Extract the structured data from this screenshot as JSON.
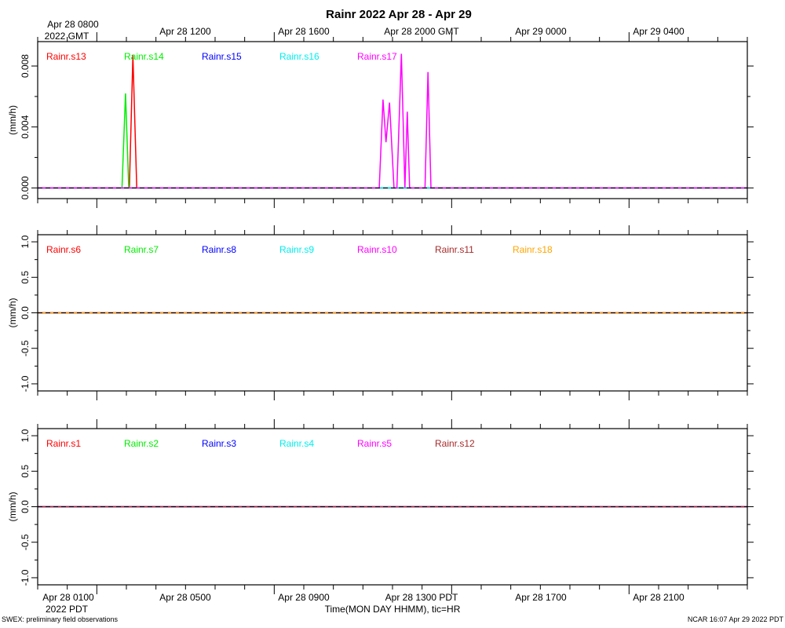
{
  "title": "Rainr 2022 Apr 28 - Apr 29",
  "top_axis": {
    "tick_labels": [
      "Apr 28 0800",
      "Apr 28 1200",
      "Apr 28 1600",
      "Apr 28 2000 GMT",
      "Apr 29 0000",
      "Apr 29 0400"
    ],
    "sub_label": "2022 GMT"
  },
  "bottom_axis": {
    "tick_labels": [
      "Apr 28 0100",
      "Apr 28 0500",
      "Apr 28 0900",
      "Apr 28 1300 PDT",
      "Apr 28 1700",
      "Apr 28 2100"
    ],
    "sub_label": "2022 PDT",
    "xlabel": "Time(MON DAY HHMM), tic=HR"
  },
  "footer": {
    "left": "SWEX: preliminary field observations",
    "right": "NCAR 16:07 Apr 29 2022 PDT"
  },
  "colors": {
    "red": "#ff0000",
    "green": "#00ee00",
    "blue": "#0000ff",
    "cyan": "#00eeee",
    "magenta": "#ff00ff",
    "brown": "#a52a2a",
    "orange": "#ffa500"
  },
  "chart_data": [
    {
      "type": "line",
      "ylabel": "(mm/h)",
      "xlim": [
        0,
        24
      ],
      "ylim": [
        -0.0007,
        0.0096
      ],
      "yticks": [
        0.0,
        0.004,
        0.008
      ],
      "ytick_labels": [
        "0.000",
        "0.004",
        "0.008"
      ],
      "series": [
        {
          "name": "Rainr.s13",
          "color": "#ff0000",
          "x": [
            0,
            3.1,
            3.22,
            3.35,
            24
          ],
          "y": [
            0,
            0,
            0.0087,
            0,
            0
          ]
        },
        {
          "name": "Rainr.s14",
          "color": "#00ee00",
          "x": [
            0,
            2.85,
            2.97,
            3.08,
            24
          ],
          "y": [
            0,
            0,
            0.0062,
            0,
            0
          ]
        },
        {
          "name": "Rainr.s15",
          "color": "#0000ff",
          "x": [
            0,
            24
          ],
          "y": [
            0,
            0
          ]
        },
        {
          "name": "Rainr.s16",
          "color": "#00eeee",
          "x": [
            0,
            24
          ],
          "y": [
            0,
            0
          ]
        },
        {
          "name": "Rainr.s17",
          "color": "#ff00ff",
          "x": [
            0,
            11.55,
            11.68,
            11.78,
            11.9,
            12.05,
            12.15,
            12.3,
            12.42,
            12.5,
            12.58,
            13.1,
            13.2,
            13.3,
            24
          ],
          "y": [
            0,
            0,
            0.0058,
            0.003,
            0.0056,
            0,
            0,
            0.0088,
            0,
            0.005,
            0,
            0,
            0.0076,
            0,
            0
          ]
        }
      ]
    },
    {
      "type": "line",
      "ylabel": "(mm/h)",
      "xlim": [
        0,
        24
      ],
      "ylim": [
        -1.1,
        1.1
      ],
      "yticks": [
        -1.0,
        -0.5,
        0.0,
        0.5,
        1.0
      ],
      "ytick_labels": [
        "-1.0",
        "-0.5",
        "0.0",
        "0.5",
        "1.0"
      ],
      "series": [
        {
          "name": "Rainr.s6",
          "color": "#ff0000",
          "x": [
            0,
            24
          ],
          "y": [
            0,
            0
          ]
        },
        {
          "name": "Rainr.s7",
          "color": "#00ee00",
          "x": [
            0,
            24
          ],
          "y": [
            0,
            0
          ]
        },
        {
          "name": "Rainr.s8",
          "color": "#0000ff",
          "x": [
            0,
            24
          ],
          "y": [
            0,
            0
          ]
        },
        {
          "name": "Rainr.s9",
          "color": "#00eeee",
          "x": [
            0,
            24
          ],
          "y": [
            0,
            0
          ]
        },
        {
          "name": "Rainr.s10",
          "color": "#ff00ff",
          "x": [
            0,
            24
          ],
          "y": [
            0,
            0
          ]
        },
        {
          "name": "Rainr.s11",
          "color": "#a52a2a",
          "x": [
            0,
            24
          ],
          "y": [
            0,
            0
          ]
        },
        {
          "name": "Rainr.s18",
          "color": "#ffa500",
          "x": [
            0,
            24
          ],
          "y": [
            0,
            0
          ]
        }
      ]
    },
    {
      "type": "line",
      "ylabel": "(mm/h)",
      "xlim": [
        0,
        24
      ],
      "ylim": [
        -1.1,
        1.1
      ],
      "yticks": [
        -1.0,
        -0.5,
        0.0,
        0.5,
        1.0
      ],
      "ytick_labels": [
        "-1.0",
        "-0.5",
        "0.0",
        "0.5",
        "1.0"
      ],
      "series": [
        {
          "name": "Rainr.s1",
          "color": "#ff0000",
          "x": [
            0,
            24
          ],
          "y": [
            0,
            0
          ]
        },
        {
          "name": "Rainr.s2",
          "color": "#00ee00",
          "x": [
            0,
            24
          ],
          "y": [
            0,
            0
          ]
        },
        {
          "name": "Rainr.s3",
          "color": "#0000ff",
          "x": [
            0,
            24
          ],
          "y": [
            0,
            0
          ]
        },
        {
          "name": "Rainr.s4",
          "color": "#00eeee",
          "x": [
            0,
            24
          ],
          "y": [
            0,
            0
          ]
        },
        {
          "name": "Rainr.s5",
          "color": "#ff00ff",
          "x": [
            0,
            24
          ],
          "y": [
            0,
            0
          ]
        },
        {
          "name": "Rainr.s12",
          "color": "#a52a2a",
          "x": [
            0,
            24
          ],
          "y": [
            0,
            0
          ]
        }
      ]
    }
  ]
}
